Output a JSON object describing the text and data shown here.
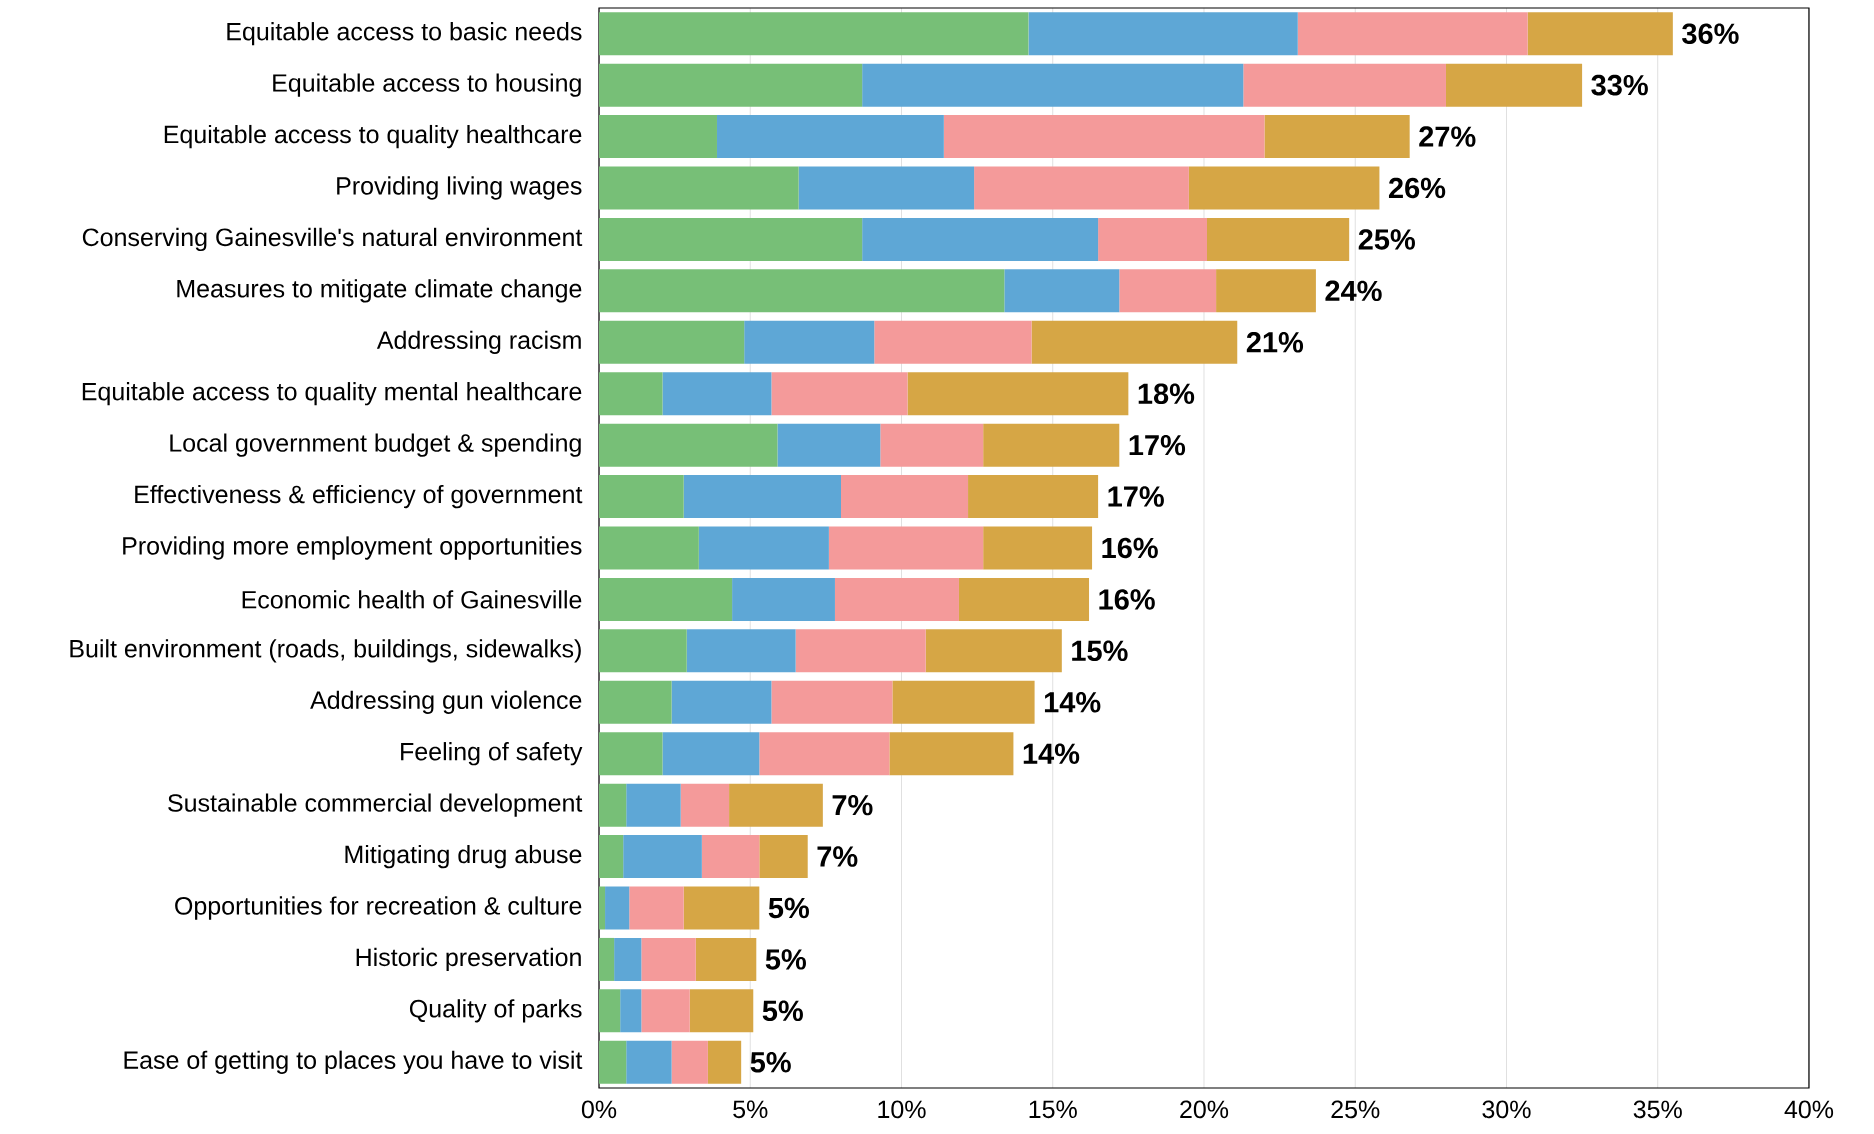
{
  "chart_data": {
    "type": "bar",
    "orientation": "horizontal",
    "stacked": true,
    "categories": [
      "Equitable access to basic needs",
      "Equitable access to housing",
      "Equitable access to quality healthcare",
      "Providing living wages",
      "Conserving Gainesville's natural environment",
      "Measures to mitigate climate change",
      "Addressing racism",
      "Equitable access to quality mental healthcare",
      "Local government budget & spending",
      "Effectiveness & efficiency of government",
      "Providing more employment opportunities",
      "Economic health of Gainesville",
      "Built environment (roads, buildings, sidewalks)",
      "Addressing gun violence",
      "Feeling of safety",
      "Sustainable commercial development",
      "Mitigating drug abuse",
      "Opportunities for recreation & culture",
      "Historic preservation",
      "Quality of parks",
      "Ease of getting to places you have to visit"
    ],
    "series": [
      {
        "color": "#77bf77",
        "values": [
          14.2,
          8.7,
          3.9,
          6.6,
          8.7,
          13.4,
          4.8,
          2.1,
          5.9,
          2.8,
          3.3,
          4.4,
          2.9,
          2.4,
          2.1,
          0.9,
          0.8,
          0.2,
          0.5,
          0.7,
          0.9
        ]
      },
      {
        "color": "#5ea7d6",
        "values": [
          8.9,
          12.6,
          7.5,
          5.8,
          7.8,
          3.8,
          4.3,
          3.6,
          3.4,
          5.2,
          4.3,
          3.4,
          3.6,
          3.3,
          3.2,
          1.8,
          2.6,
          0.8,
          0.9,
          0.7,
          1.5
        ]
      },
      {
        "color": "#f49a9a",
        "values": [
          7.6,
          6.7,
          10.6,
          7.1,
          3.6,
          3.2,
          5.2,
          4.5,
          3.4,
          4.2,
          5.1,
          4.1,
          4.3,
          4.0,
          4.3,
          1.6,
          1.9,
          1.8,
          1.8,
          1.6,
          1.2
        ]
      },
      {
        "color": "#d6a645",
        "values": [
          4.8,
          4.5,
          4.8,
          6.3,
          4.7,
          3.3,
          6.8,
          7.3,
          4.5,
          4.3,
          3.6,
          4.3,
          4.5,
          4.7,
          4.1,
          3.1,
          1.6,
          2.5,
          2.0,
          2.1,
          1.1
        ]
      }
    ],
    "totals": [
      "36%",
      "33%",
      "27%",
      "26%",
      "25%",
      "24%",
      "21%",
      "18%",
      "17%",
      "17%",
      "16%",
      "16%",
      "15%",
      "14%",
      "14%",
      "7%",
      "7%",
      "5%",
      "5%",
      "5%",
      "5%"
    ],
    "xlim": [
      0,
      40
    ],
    "xticks": [
      {
        "value": 0,
        "label": "0%"
      },
      {
        "value": 5,
        "label": "5%"
      },
      {
        "value": 10,
        "label": "10%"
      },
      {
        "value": 15,
        "label": "15%"
      },
      {
        "value": 20,
        "label": "20%"
      },
      {
        "value": 25,
        "label": "25%"
      },
      {
        "value": 30,
        "label": "30%"
      },
      {
        "value": 35,
        "label": "35%"
      },
      {
        "value": 40,
        "label": "40%"
      }
    ],
    "grid": "x"
  }
}
